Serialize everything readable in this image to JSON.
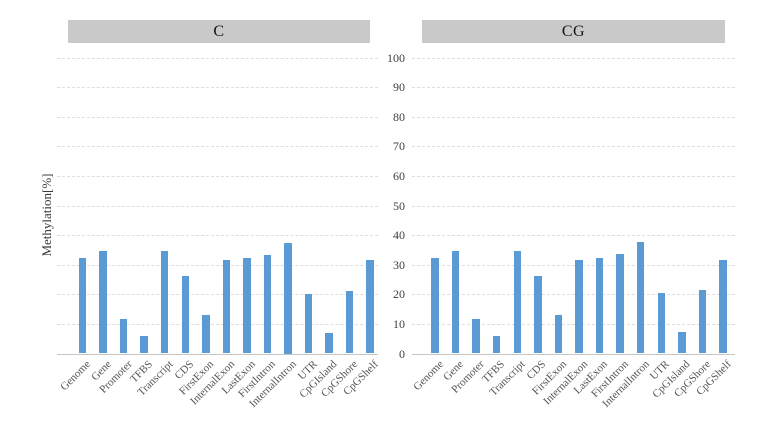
{
  "chart_data": {
    "type": "bar",
    "title": "",
    "ylabel": "Methylation[%]",
    "ylim": [
      0,
      100
    ],
    "yticks": [
      0,
      10,
      20,
      30,
      40,
      50,
      60,
      70,
      80,
      90,
      100
    ],
    "grid": true,
    "legend": "none",
    "bar_color": "#5b9bd5",
    "header_bg": "#c9c9c9",
    "categories": [
      "Genome",
      "Gene",
      "Promoter",
      "TFBS",
      "Transcript",
      "CDS",
      "FirstExon",
      "InternalExon",
      "LastExon",
      "FirstIntron",
      "InternalIntron",
      "UTR",
      "CpGIsland",
      "CpGShore",
      "CpGShelf"
    ],
    "panels": [
      {
        "title": "C",
        "values": [
          32.3,
          34.5,
          11.5,
          6.0,
          34.5,
          26.2,
          13.0,
          31.5,
          32.2,
          33.4,
          37.5,
          20.2,
          7.0,
          21.2,
          31.5
        ]
      },
      {
        "title": "CG",
        "values": [
          32.3,
          34.6,
          11.6,
          6.0,
          34.6,
          26.2,
          13.0,
          31.5,
          32.2,
          33.5,
          37.6,
          20.3,
          7.2,
          21.3,
          31.5
        ]
      }
    ]
  }
}
